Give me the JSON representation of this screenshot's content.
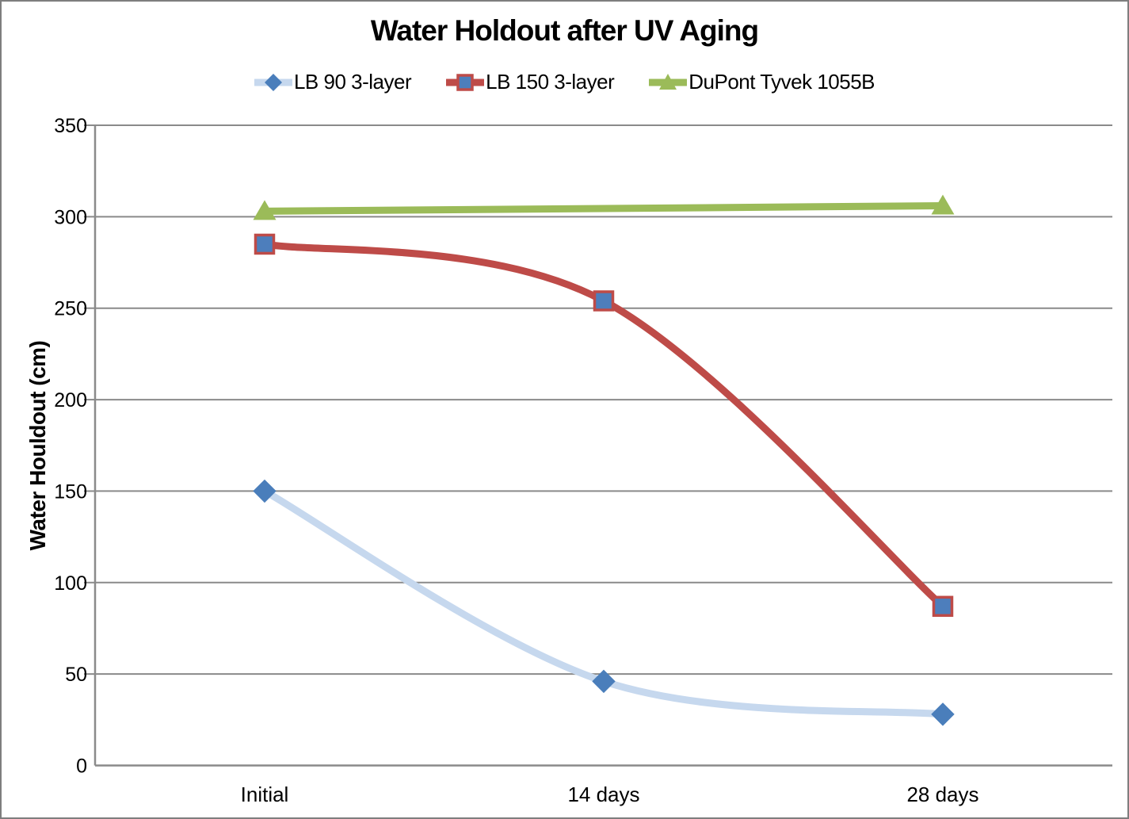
{
  "chart_data": {
    "type": "line",
    "title": "Water Holdout after UV Aging",
    "xlabel": "",
    "ylabel": "Water Houldout (cm)",
    "categories": [
      "Initial",
      "14 days",
      "28 days"
    ],
    "series": [
      {
        "name": "LB 90 3-layer",
        "values": [
          150,
          46,
          28
        ],
        "line_color": "#c6d8ee",
        "marker": "diamond",
        "marker_fill": "#4a7ebb",
        "marker_stroke": "#4a7ebb"
      },
      {
        "name": "LB 150 3-layer",
        "values": [
          285,
          254,
          87
        ],
        "line_color": "#be4b48",
        "marker": "square",
        "marker_fill": "#4d7ebc",
        "marker_stroke": "#be4b48"
      },
      {
        "name": "DuPont Tyvek 1055B",
        "values": [
          303,
          null,
          306
        ],
        "line_color": "#9bbb59",
        "marker": "triangle",
        "marker_fill": "#9bbb59",
        "marker_stroke": "#9bbb59"
      }
    ],
    "ylim": [
      0,
      350
    ],
    "y_ticks": [
      0,
      50,
      100,
      150,
      200,
      250,
      300,
      350
    ],
    "grid": "horizontal",
    "legend_position": "top",
    "line_smoothing": true,
    "colors": {
      "grid": "#8a8a8a",
      "axis": "#8a8a8a",
      "text": "#000000",
      "frame_border": "#7e7e7e",
      "background": "#ffffff"
    }
  }
}
